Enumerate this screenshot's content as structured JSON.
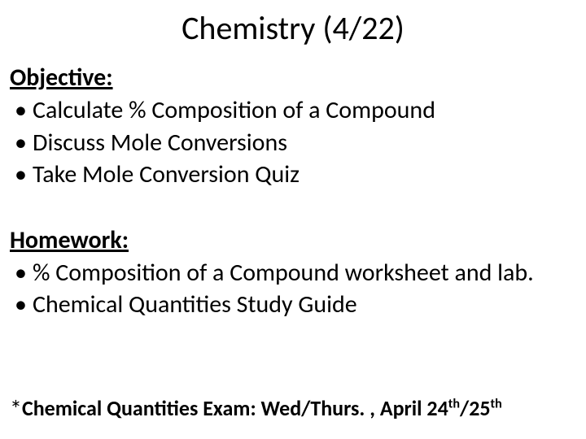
{
  "title": "Chemistry (4/22)",
  "objective": {
    "heading": "Objective:",
    "items": [
      "Calculate % Composition of a Compound",
      "Discuss Mole Conversions",
      "Take Mole Conversion Quiz"
    ]
  },
  "homework": {
    "heading": "Homework:",
    "items": [
      "% Composition of a Compound worksheet and lab.",
      "Chemical Quantities Study Guide"
    ]
  },
  "footnote": {
    "star": "*",
    "prefix": "Chemical Quantities Exam:  Wed/Thurs. , April 24",
    "sup1": "th",
    "mid": "/25",
    "sup2": "th"
  },
  "colors": {
    "background": "#ffffff",
    "text": "#000000"
  },
  "typography": {
    "title_fontsize": 40,
    "body_fontsize": 30,
    "footnote_fontsize": 26,
    "font_family": "Calibri"
  }
}
